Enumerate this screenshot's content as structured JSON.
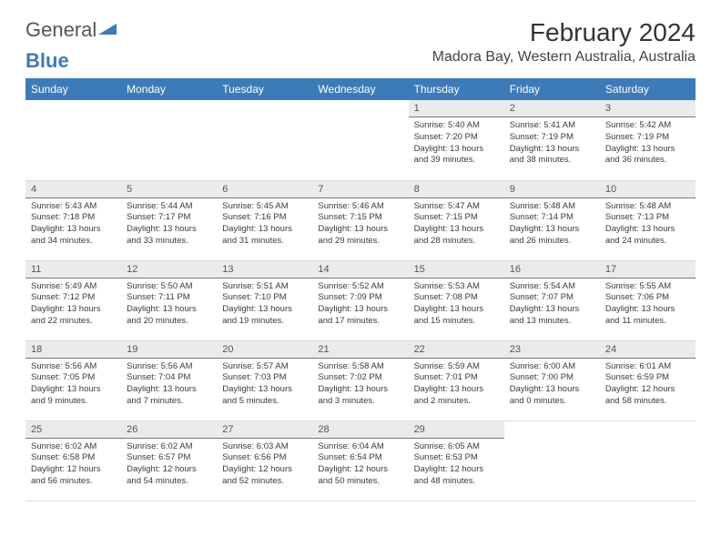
{
  "logo": {
    "part1": "General",
    "part2": "Blue"
  },
  "title": "February 2024",
  "location": "Madora Bay, Western Australia, Australia",
  "header_bg": "#3d7bb8",
  "daynum_bg": "#e9ebec",
  "daynames": [
    "Sunday",
    "Monday",
    "Tuesday",
    "Wednesday",
    "Thursday",
    "Friday",
    "Saturday"
  ],
  "weeks": [
    [
      null,
      null,
      null,
      null,
      {
        "d": "1",
        "sr": "5:40 AM",
        "ss": "7:20 PM",
        "dl": "13 hours and 39 minutes."
      },
      {
        "d": "2",
        "sr": "5:41 AM",
        "ss": "7:19 PM",
        "dl": "13 hours and 38 minutes."
      },
      {
        "d": "3",
        "sr": "5:42 AM",
        "ss": "7:19 PM",
        "dl": "13 hours and 36 minutes."
      }
    ],
    [
      {
        "d": "4",
        "sr": "5:43 AM",
        "ss": "7:18 PM",
        "dl": "13 hours and 34 minutes."
      },
      {
        "d": "5",
        "sr": "5:44 AM",
        "ss": "7:17 PM",
        "dl": "13 hours and 33 minutes."
      },
      {
        "d": "6",
        "sr": "5:45 AM",
        "ss": "7:16 PM",
        "dl": "13 hours and 31 minutes."
      },
      {
        "d": "7",
        "sr": "5:46 AM",
        "ss": "7:15 PM",
        "dl": "13 hours and 29 minutes."
      },
      {
        "d": "8",
        "sr": "5:47 AM",
        "ss": "7:15 PM",
        "dl": "13 hours and 28 minutes."
      },
      {
        "d": "9",
        "sr": "5:48 AM",
        "ss": "7:14 PM",
        "dl": "13 hours and 26 minutes."
      },
      {
        "d": "10",
        "sr": "5:48 AM",
        "ss": "7:13 PM",
        "dl": "13 hours and 24 minutes."
      }
    ],
    [
      {
        "d": "11",
        "sr": "5:49 AM",
        "ss": "7:12 PM",
        "dl": "13 hours and 22 minutes."
      },
      {
        "d": "12",
        "sr": "5:50 AM",
        "ss": "7:11 PM",
        "dl": "13 hours and 20 minutes."
      },
      {
        "d": "13",
        "sr": "5:51 AM",
        "ss": "7:10 PM",
        "dl": "13 hours and 19 minutes."
      },
      {
        "d": "14",
        "sr": "5:52 AM",
        "ss": "7:09 PM",
        "dl": "13 hours and 17 minutes."
      },
      {
        "d": "15",
        "sr": "5:53 AM",
        "ss": "7:08 PM",
        "dl": "13 hours and 15 minutes."
      },
      {
        "d": "16",
        "sr": "5:54 AM",
        "ss": "7:07 PM",
        "dl": "13 hours and 13 minutes."
      },
      {
        "d": "17",
        "sr": "5:55 AM",
        "ss": "7:06 PM",
        "dl": "13 hours and 11 minutes."
      }
    ],
    [
      {
        "d": "18",
        "sr": "5:56 AM",
        "ss": "7:05 PM",
        "dl": "13 hours and 9 minutes."
      },
      {
        "d": "19",
        "sr": "5:56 AM",
        "ss": "7:04 PM",
        "dl": "13 hours and 7 minutes."
      },
      {
        "d": "20",
        "sr": "5:57 AM",
        "ss": "7:03 PM",
        "dl": "13 hours and 5 minutes."
      },
      {
        "d": "21",
        "sr": "5:58 AM",
        "ss": "7:02 PM",
        "dl": "13 hours and 3 minutes."
      },
      {
        "d": "22",
        "sr": "5:59 AM",
        "ss": "7:01 PM",
        "dl": "13 hours and 2 minutes."
      },
      {
        "d": "23",
        "sr": "6:00 AM",
        "ss": "7:00 PM",
        "dl": "13 hours and 0 minutes."
      },
      {
        "d": "24",
        "sr": "6:01 AM",
        "ss": "6:59 PM",
        "dl": "12 hours and 58 minutes."
      }
    ],
    [
      {
        "d": "25",
        "sr": "6:02 AM",
        "ss": "6:58 PM",
        "dl": "12 hours and 56 minutes."
      },
      {
        "d": "26",
        "sr": "6:02 AM",
        "ss": "6:57 PM",
        "dl": "12 hours and 54 minutes."
      },
      {
        "d": "27",
        "sr": "6:03 AM",
        "ss": "6:56 PM",
        "dl": "12 hours and 52 minutes."
      },
      {
        "d": "28",
        "sr": "6:04 AM",
        "ss": "6:54 PM",
        "dl": "12 hours and 50 minutes."
      },
      {
        "d": "29",
        "sr": "6:05 AM",
        "ss": "6:53 PM",
        "dl": "12 hours and 48 minutes."
      },
      null,
      null
    ]
  ]
}
